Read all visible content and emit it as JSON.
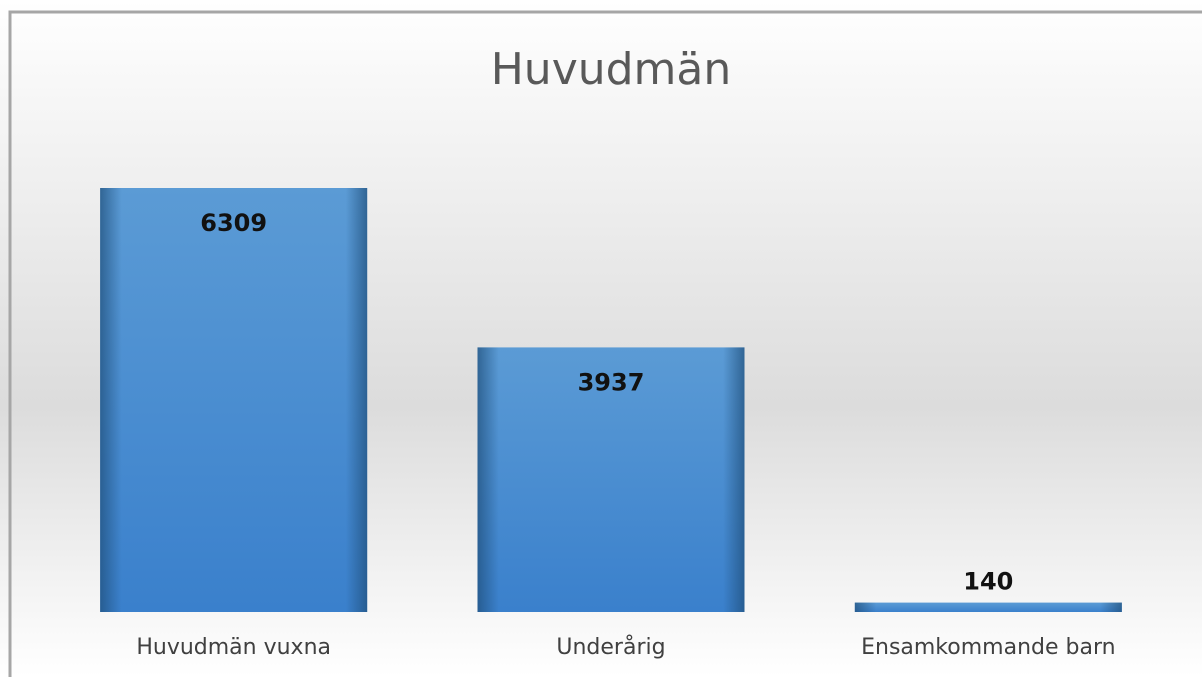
{
  "chart_data": {
    "type": "bar",
    "title": "Huvudmän",
    "categories": [
      "Huvudmän vuxna",
      "Underårig",
      "Ensamkommande barn"
    ],
    "values": [
      6309,
      3937,
      140
    ],
    "color": "#4a8fd3"
  }
}
